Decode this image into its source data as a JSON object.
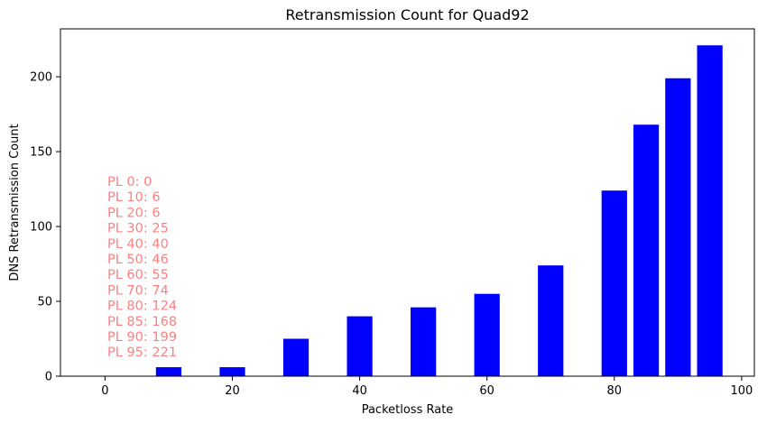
{
  "chart_data": {
    "type": "bar",
    "title": "Retransmission Count for Quad92",
    "xlabel": "Packetloss Rate",
    "ylabel": "DNS Retransmission Count",
    "x": [
      0,
      10,
      20,
      30,
      40,
      50,
      60,
      70,
      80,
      85,
      90,
      95
    ],
    "values": [
      0,
      6,
      6,
      25,
      40,
      46,
      55,
      74,
      124,
      168,
      199,
      221
    ],
    "bar_width": 4,
    "bar_color": "#0000ff",
    "xlim": [
      -7,
      102
    ],
    "ylim": [
      0,
      232
    ],
    "xticks": [
      0,
      20,
      40,
      60,
      80,
      100
    ],
    "yticks": [
      0,
      50,
      100,
      150,
      200
    ],
    "grid": false,
    "annotation_color": "#ff7f7f",
    "annotations": [
      "PL 0: 0",
      "PL 10: 6",
      "PL 20: 6",
      "PL 30: 25",
      "PL 40: 40",
      "PL 50: 46",
      "PL 60: 55",
      "PL 70: 74",
      "PL 80: 124",
      "PL 85: 168",
      "PL 90: 199",
      "PL 95: 221"
    ]
  }
}
